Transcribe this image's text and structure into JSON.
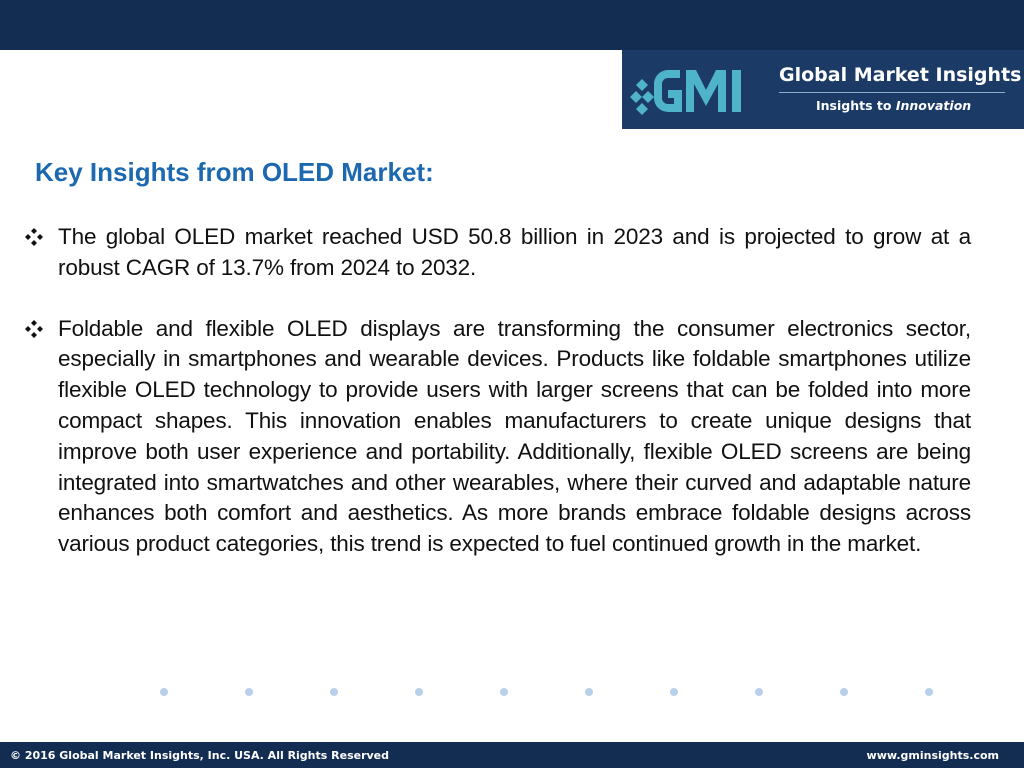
{
  "header": {
    "logo": {
      "name": "Global Market Insights",
      "tagline_prefix": "Insights to",
      "tagline_emphasis": "Innovation",
      "mark": "GMI",
      "colors": {
        "bar": "#132d52",
        "box": "#1b3b66",
        "mark": "#4fb3c9"
      }
    }
  },
  "content": {
    "heading": "Key Insights from OLED Market:",
    "bullet_icon": "diamond-bullet-icon",
    "bullets": [
      "The global OLED market reached USD 50.8 billion in 2023 and is projected to grow at a robust CAGR of 13.7% from 2024 to 2032.",
      "Foldable and flexible OLED displays are transforming the consumer electronics sector, especially in smartphones and wearable devices. Products like foldable smartphones utilize flexible OLED technology to provide users with larger screens that can be folded into more compact shapes. This innovation enables manufacturers to create unique designs that improve both user experience and portability. Additionally, flexible OLED screens are being integrated into smartwatches and other wearables, where their curved and adaptable nature enhances both comfort and aesthetics. As more brands embrace foldable designs across various product categories, this trend is expected to fuel continued growth in the market."
    ]
  },
  "footer": {
    "copyright": "© 2016 Global Market Insights, Inc. USA.  All Rights Reserved",
    "website": "www.gminsights.com"
  }
}
